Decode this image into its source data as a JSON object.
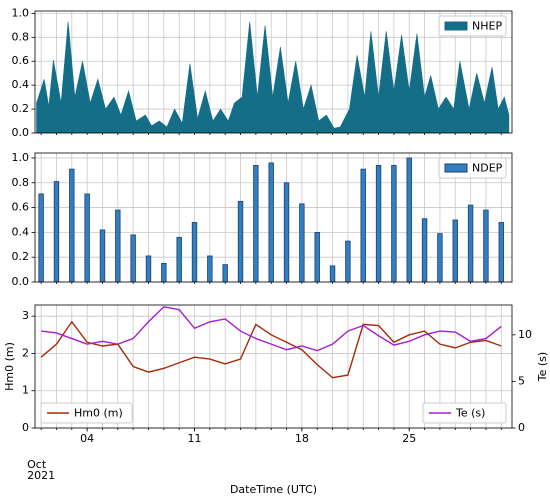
{
  "chart_data": [
    {
      "type": "area",
      "legend": "upper right",
      "grid": true,
      "series": [
        {
          "name": "NHEP",
          "color": "#156e87",
          "x": [
            0.7,
            1.2,
            1.5,
            1.8,
            2.3,
            2.76,
            3.2,
            3.7,
            4.2,
            4.7,
            5.2,
            5.75,
            6.2,
            6.7,
            7.2,
            7.8,
            8.2,
            8.7,
            9.2,
            9.7,
            10.2,
            10.7,
            11.2,
            11.7,
            12.2,
            12.7,
            13.2,
            13.6,
            14.1,
            14.6,
            15.1,
            15.6,
            16.1,
            16.6,
            17.1,
            17.6,
            18.1,
            18.6,
            19.1,
            19.6,
            20.1,
            20.5,
            21.1,
            21.6,
            22.1,
            22.5,
            23.0,
            23.5,
            24.0,
            24.5,
            25.0,
            25.5,
            26.0,
            26.4,
            26.9,
            27.4,
            27.9,
            28.3,
            28.9,
            29.4,
            29.9,
            30.4,
            30.8,
            31.2,
            31.5
          ],
          "values": [
            0.25,
            0.45,
            0.22,
            0.61,
            0.25,
            0.93,
            0.3,
            0.6,
            0.25,
            0.45,
            0.2,
            0.3,
            0.15,
            0.35,
            0.1,
            0.15,
            0.06,
            0.1,
            0.05,
            0.2,
            0.08,
            0.58,
            0.12,
            0.35,
            0.1,
            0.2,
            0.1,
            0.25,
            0.3,
            0.93,
            0.3,
            0.9,
            0.3,
            0.72,
            0.25,
            0.6,
            0.2,
            0.4,
            0.1,
            0.15,
            0.04,
            0.05,
            0.2,
            0.65,
            0.3,
            0.85,
            0.3,
            0.85,
            0.35,
            0.82,
            0.35,
            0.83,
            0.3,
            0.48,
            0.2,
            0.3,
            0.2,
            0.6,
            0.2,
            0.5,
            0.25,
            0.55,
            0.2,
            0.3,
            0.15
          ]
        }
      ],
      "xlim": [
        0.6,
        31.7
      ],
      "xminorticks": [
        1,
        2,
        3,
        4,
        5,
        6,
        7,
        8,
        9,
        10,
        11,
        12,
        13,
        14,
        15,
        16,
        17,
        18,
        19,
        20,
        21,
        22,
        23,
        24,
        25,
        26,
        27,
        28,
        29,
        30,
        31
      ],
      "ylim": [
        0,
        1.02
      ],
      "yticks": [
        {
          "value": 0,
          "label": "0.0"
        },
        {
          "value": 0.2,
          "label": "0.2"
        },
        {
          "value": 0.4,
          "label": "0.4"
        },
        {
          "value": 0.6,
          "label": "0.6"
        },
        {
          "value": 0.8,
          "label": "0.8"
        },
        {
          "value": 1,
          "label": "1.0"
        }
      ]
    },
    {
      "type": "bar",
      "legend": "upper right",
      "grid": true,
      "series": [
        {
          "name": "NDEP",
          "color": "#2f7fc1",
          "edgecolor": "#1f3f70",
          "x": [
            1,
            2,
            3,
            4,
            5,
            6,
            7,
            8,
            9,
            10,
            11,
            12,
            13,
            14,
            15,
            16,
            17,
            18,
            19,
            20,
            21,
            22,
            23,
            24,
            25,
            26,
            27,
            28,
            29,
            30,
            31
          ],
          "values": [
            0.71,
            0.81,
            0.91,
            0.71,
            0.42,
            0.58,
            0.38,
            0.21,
            0.15,
            0.36,
            0.48,
            0.21,
            0.14,
            0.65,
            0.94,
            0.96,
            0.8,
            0.63,
            0.4,
            0.13,
            0.33,
            0.91,
            0.94,
            0.94,
            1.0,
            0.51,
            0.39,
            0.5,
            0.62,
            0.58,
            0.48
          ]
        }
      ],
      "xlim": [
        0.6,
        31.7
      ],
      "xminorticks": [
        1,
        2,
        3,
        4,
        5,
        6,
        7,
        8,
        9,
        10,
        11,
        12,
        13,
        14,
        15,
        16,
        17,
        18,
        19,
        20,
        21,
        22,
        23,
        24,
        25,
        26,
        27,
        28,
        29,
        30,
        31
      ],
      "ylim": [
        0,
        1.04
      ],
      "yticks": [
        {
          "value": 0,
          "label": "0.0"
        },
        {
          "value": 0.2,
          "label": "0.2"
        },
        {
          "value": 0.4,
          "label": "0.4"
        },
        {
          "value": 0.6,
          "label": "0.6"
        },
        {
          "value": 0.8,
          "label": "0.8"
        },
        {
          "value": 1,
          "label": "1.0"
        }
      ]
    },
    {
      "type": "line",
      "grid": true,
      "ylabel": "Hm0 (m)",
      "y2label": "Te (s)",
      "xlabel": "DateTime (UTC)",
      "x_annotation": [
        "Oct",
        "2021"
      ],
      "x": [
        1,
        2,
        3,
        4,
        5,
        6,
        7,
        8,
        9,
        10,
        11,
        12,
        13,
        14,
        15,
        16,
        17,
        18,
        19,
        20,
        21,
        22,
        23,
        24,
        25,
        26,
        27,
        28,
        29,
        30,
        31
      ],
      "series": [
        {
          "name": "Hm0 (m)",
          "color": "#a52a0a",
          "legend": "lower left",
          "values": [
            1.9,
            2.25,
            2.85,
            2.3,
            2.2,
            2.25,
            1.65,
            1.5,
            1.6,
            1.75,
            1.9,
            1.85,
            1.72,
            1.85,
            2.78,
            2.5,
            2.3,
            2.1,
            1.7,
            1.35,
            1.42,
            2.78,
            2.75,
            2.3,
            2.5,
            2.6,
            2.25,
            2.15,
            2.3,
            2.35,
            2.2
          ]
        },
        {
          "name": "Te (s)",
          "color": "#a31fd1",
          "axis": "y2",
          "legend": "lower right",
          "values": [
            10.4,
            10.2,
            9.6,
            9.0,
            9.3,
            9.0,
            9.6,
            11.4,
            13.0,
            12.7,
            10.7,
            11.4,
            11.7,
            10.4,
            9.6,
            9.0,
            8.4,
            8.8,
            8.3,
            9.0,
            10.4,
            11.0,
            9.9,
            8.9,
            9.3,
            10.0,
            10.4,
            10.3,
            9.3,
            9.6,
            10.9
          ]
        }
      ],
      "xlim": [
        0.6,
        31.7
      ],
      "xminorticks": [
        1,
        2,
        3,
        4,
        5,
        6,
        7,
        8,
        9,
        10,
        11,
        12,
        13,
        14,
        15,
        16,
        17,
        18,
        19,
        20,
        21,
        22,
        23,
        24,
        25,
        26,
        27,
        28,
        29,
        30,
        31
      ],
      "xticks": [
        {
          "value": 4,
          "label": "04"
        },
        {
          "value": 11,
          "label": "11"
        },
        {
          "value": 18,
          "label": "18"
        },
        {
          "value": 25,
          "label": "25"
        }
      ],
      "ylim": [
        0,
        3.3
      ],
      "yticks": [
        0,
        1,
        2,
        3
      ],
      "y2lim": [
        0,
        13.2
      ],
      "y2ticks": [
        0,
        5,
        10
      ]
    }
  ]
}
